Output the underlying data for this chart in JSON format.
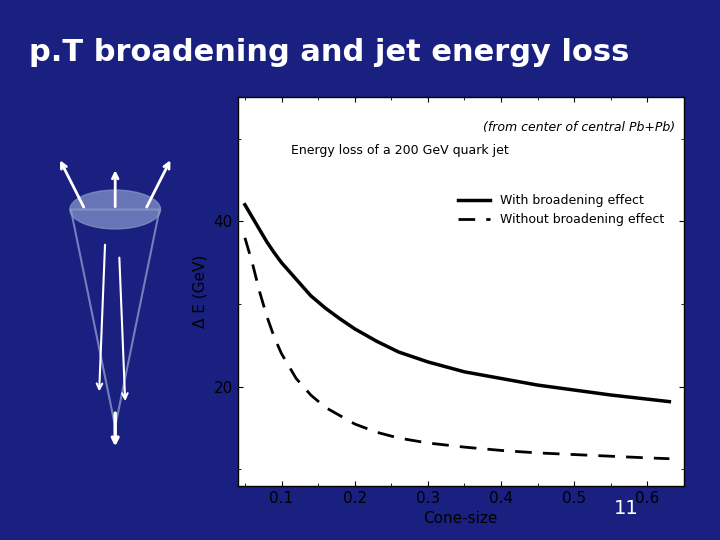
{
  "title": "p.T broadening and jet energy loss",
  "title_color": "#ffffff",
  "background_color": "#1a1a7e",
  "slide_bg": "#1a2080",
  "plot_bg": "#ffffff",
  "subtitle": "(from center of central Pb+Pb)",
  "description": "Energy loss of a 200 GeV quark jet",
  "xlabel": "Cone-size",
  "ylabel": "Δ E (GeV)",
  "xlim": [
    0.04,
    0.65
  ],
  "ylim": [
    8,
    55
  ],
  "yticks": [
    20,
    40
  ],
  "xticks": [
    0.1,
    0.2,
    0.3,
    0.4,
    0.5,
    0.6
  ],
  "legend_solid": "With broadening effect",
  "legend_dashed": "Without broadening effect",
  "page_number": "11",
  "with_broadening_x": [
    0.05,
    0.06,
    0.07,
    0.08,
    0.09,
    0.1,
    0.12,
    0.14,
    0.16,
    0.18,
    0.2,
    0.23,
    0.26,
    0.3,
    0.35,
    0.4,
    0.45,
    0.5,
    0.55,
    0.6,
    0.63
  ],
  "with_broadening_y": [
    42.0,
    40.5,
    39.0,
    37.5,
    36.2,
    35.0,
    33.0,
    31.0,
    29.5,
    28.2,
    27.0,
    25.5,
    24.2,
    23.0,
    21.8,
    21.0,
    20.2,
    19.6,
    19.0,
    18.5,
    18.2
  ],
  "without_broadening_x": [
    0.05,
    0.06,
    0.07,
    0.08,
    0.09,
    0.1,
    0.12,
    0.14,
    0.16,
    0.18,
    0.2,
    0.23,
    0.26,
    0.3,
    0.35,
    0.4,
    0.45,
    0.5,
    0.55,
    0.6,
    0.63
  ],
  "without_broadening_y": [
    38.0,
    35.0,
    31.5,
    28.5,
    26.0,
    24.0,
    21.0,
    19.0,
    17.5,
    16.5,
    15.5,
    14.5,
    13.8,
    13.2,
    12.7,
    12.3,
    12.0,
    11.8,
    11.6,
    11.4,
    11.3
  ]
}
